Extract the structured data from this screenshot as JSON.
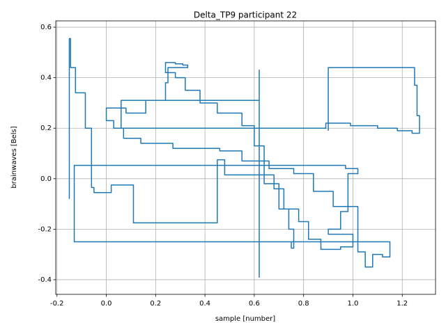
{
  "chart_data": {
    "type": "line",
    "title": "Delta_TP9 participant 22",
    "x_label": "sample [number]",
    "y_label": "brainwaves [Bels]",
    "color": "#1f77b4",
    "grid": true,
    "x": [
      -0.15,
      -0.15,
      -0.145,
      -0.145,
      -0.125,
      -0.125,
      -0.085,
      -0.085,
      -0.06,
      -0.06,
      -0.05,
      -0.05,
      0.02,
      0.02,
      0.11,
      0.11,
      0.45,
      0.45,
      0.48,
      0.48,
      0.68,
      0.68,
      0.72,
      0.72,
      0.74,
      0.74,
      0.76,
      0.76,
      0.75,
      0.75,
      -0.13,
      -0.13,
      0.97,
      0.97,
      1.02,
      1.02,
      0.98,
      0.98,
      0.95,
      0.95,
      0.9,
      0.9,
      1.0,
      1.0,
      0.95,
      0.95,
      0.87,
      0.87,
      0.82,
      0.82,
      0.78,
      0.78,
      0.7,
      0.7,
      0.64,
      0.64,
      0.6,
      0.6,
      0.55,
      0.55,
      0.45,
      0.45,
      0.38,
      0.38,
      0.32,
      0.32,
      0.28,
      0.28,
      0.24,
      0.24,
      0.28,
      0.28,
      0.31,
      0.31,
      0.33,
      0.33,
      0.25,
      0.25,
      0.24,
      0.24,
      0.16,
      0.16,
      0.08,
      0.08,
      0.0,
      0.0,
      0.03,
      0.03,
      0.07,
      0.07,
      0.14,
      0.14,
      0.27,
      0.27,
      0.46,
      0.46,
      0.55,
      0.55,
      0.66,
      0.66,
      0.76,
      0.76,
      0.84,
      0.84,
      0.92,
      0.92,
      1.02,
      1.02,
      1.05,
      1.05,
      1.08,
      1.08,
      1.12,
      1.12,
      1.15,
      1.15,
      0.62,
      0.62,
      0.62,
      0.62,
      0.06,
      0.06,
      0.89,
      0.89,
      0.99,
      0.99,
      1.1,
      1.1,
      1.18,
      1.18,
      1.24,
      1.24,
      1.27,
      1.27,
      1.26,
      1.26,
      1.25,
      1.25,
      0.9,
      0.9
    ],
    "values": [
      -0.08,
      0.555,
      0.555,
      0.44,
      0.44,
      0.34,
      0.34,
      0.2,
      0.2,
      -0.035,
      -0.035,
      -0.055,
      -0.055,
      -0.025,
      -0.025,
      -0.175,
      -0.175,
      0.075,
      0.075,
      0.015,
      0.015,
      -0.04,
      -0.04,
      -0.12,
      -0.12,
      -0.2,
      -0.2,
      -0.275,
      -0.275,
      -0.25,
      -0.25,
      0.053,
      0.053,
      0.04,
      0.04,
      0.02,
      0.02,
      -0.13,
      -0.13,
      -0.2,
      -0.2,
      -0.22,
      -0.22,
      -0.27,
      -0.27,
      -0.28,
      -0.28,
      -0.24,
      -0.24,
      -0.17,
      -0.17,
      -0.12,
      -0.12,
      -0.02,
      -0.02,
      0.13,
      0.13,
      0.21,
      0.21,
      0.26,
      0.26,
      0.3,
      0.3,
      0.35,
      0.35,
      0.4,
      0.4,
      0.42,
      0.42,
      0.46,
      0.46,
      0.455,
      0.455,
      0.45,
      0.45,
      0.44,
      0.44,
      0.38,
      0.38,
      0.31,
      0.31,
      0.26,
      0.26,
      0.28,
      0.28,
      0.23,
      0.23,
      0.2,
      0.2,
      0.16,
      0.16,
      0.14,
      0.14,
      0.12,
      0.12,
      0.11,
      0.11,
      0.07,
      0.07,
      0.04,
      0.04,
      0.02,
      0.02,
      -0.05,
      -0.05,
      -0.11,
      -0.11,
      -0.29,
      -0.29,
      -0.35,
      -0.35,
      -0.3,
      -0.3,
      -0.31,
      -0.31,
      -0.25,
      -0.25,
      -0.39,
      0.43,
      0.31,
      0.31,
      0.2,
      0.2,
      0.22,
      0.22,
      0.21,
      0.21,
      0.2,
      0.2,
      0.19,
      0.19,
      0.18,
      0.18,
      0.25,
      0.25,
      0.37,
      0.37,
      0.44,
      0.44,
      0.19
    ],
    "xlim": [
      -0.205,
      1.335
    ],
    "ylim": [
      -0.458,
      0.625
    ],
    "xticks": [
      -0.2,
      {
        "value": 0,
        "label": "0.0"
      },
      0.2,
      0.4,
      0.6,
      0.8,
      {
        "value": 1,
        "label": "1.0"
      },
      1.2
    ],
    "yticks": [
      -0.4,
      -0.2,
      {
        "value": 0,
        "label": "0.0"
      },
      0.2,
      0.4,
      0.6
    ]
  }
}
